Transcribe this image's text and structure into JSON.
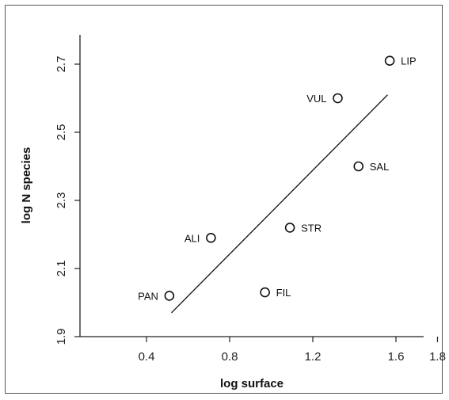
{
  "chart_data": {
    "type": "scatter",
    "xlabel": "log surface",
    "ylabel": "log N species",
    "xlim": [
      0.0,
      1.85
    ],
    "ylim": [
      1.9,
      2.8
    ],
    "x_ticks": [
      "0.4",
      "0.8",
      "1.2",
      "1.6",
      "1.8"
    ],
    "x_tick_values": [
      0.4,
      0.8,
      1.2,
      1.6,
      1.8
    ],
    "y_ticks": [
      "1.9",
      "2.1",
      "2.3",
      "2.5",
      "2.7"
    ],
    "y_tick_values": [
      1.9,
      2.1,
      2.3,
      2.5,
      2.7
    ],
    "points": [
      {
        "label": "LIP",
        "x": 1.57,
        "y": 2.71
      },
      {
        "label": "VUL",
        "x": 1.32,
        "y": 2.6
      },
      {
        "label": "SAL",
        "x": 1.42,
        "y": 2.4
      },
      {
        "label": "STR",
        "x": 1.09,
        "y": 2.22
      },
      {
        "label": "ALI",
        "x": 0.71,
        "y": 2.19
      },
      {
        "label": "FIL",
        "x": 0.97,
        "y": 2.03
      },
      {
        "label": "PAN",
        "x": 0.51,
        "y": 2.02
      }
    ],
    "fit_line": {
      "x": [
        0.52,
        1.56
      ],
      "y": [
        1.97,
        2.61
      ]
    },
    "grid": false,
    "legend": "none"
  }
}
